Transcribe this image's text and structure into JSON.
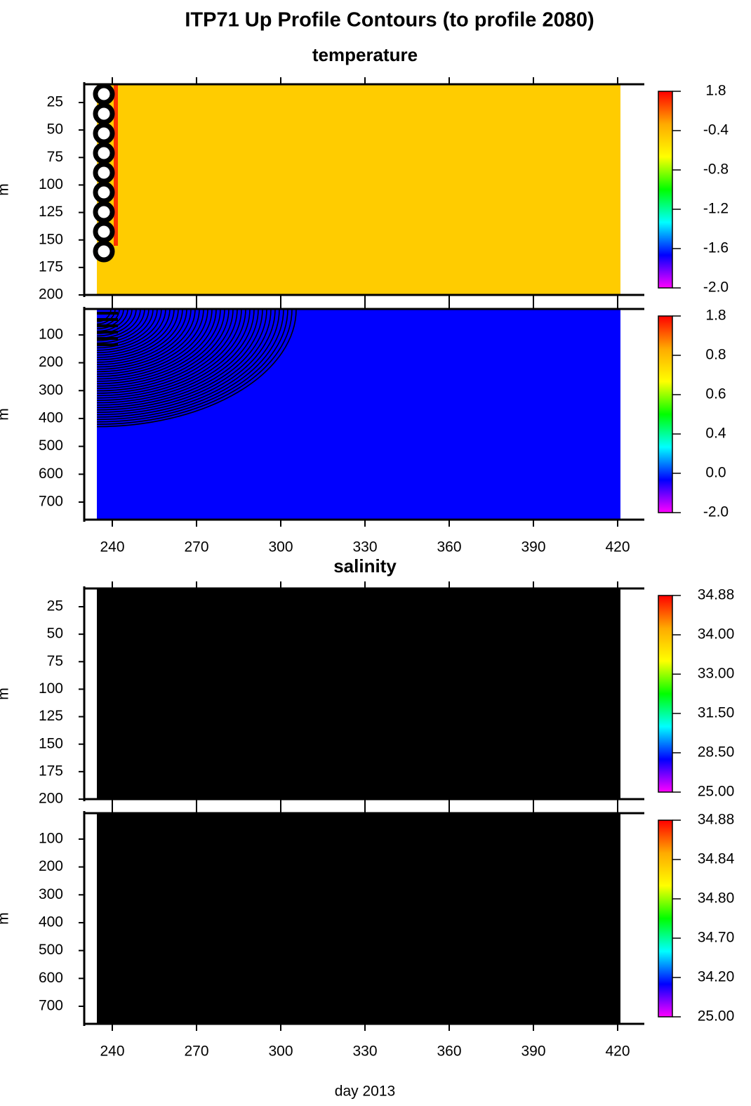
{
  "title": "ITP71 Up Profile Contours (to profile 2080)",
  "chart_data": [
    {
      "type": "contour",
      "subtitle": "temperature",
      "ylabel": "m",
      "xlim": [
        230,
        429.5
      ],
      "xticks": [
        240,
        270,
        300,
        330,
        360,
        390,
        420
      ],
      "xtick_labels_shown": false,
      "ylim": [
        200,
        8.4
      ],
      "yticks": [
        25,
        50,
        75,
        100,
        125,
        150,
        175,
        200
      ],
      "x_range": [
        234.5,
        421
      ],
      "fill_color": "#ffcc00",
      "contours": "left",
      "colorbar": {
        "labels": [
          "1.8",
          "-0.4",
          "-0.8",
          "-1.2",
          "-1.6",
          "-2.0"
        ],
        "colors": [
          "#ff0000",
          "#ffaa00",
          "#ffff00",
          "#00ff00",
          "#00ffff",
          "#0000ff",
          "#ff00ff"
        ]
      }
    },
    {
      "type": "contour",
      "ylabel": "m",
      "xlim": [
        230,
        429.5
      ],
      "xticks": [
        240,
        270,
        300,
        330,
        360,
        390,
        420
      ],
      "xtick_labels_shown": true,
      "ylim": [
        763,
        7
      ],
      "yticks": [
        100,
        200,
        300,
        400,
        500,
        600,
        700
      ],
      "x_range": [
        234.5,
        421
      ],
      "fill_color": "#0000ff",
      "contours": "arcs",
      "colorbar": {
        "labels": [
          "1.8",
          "0.8",
          "0.6",
          "0.4",
          "0.0",
          "-2.0"
        ],
        "colors": [
          "#ff0000",
          "#ffaa00",
          "#ffff00",
          "#00ff00",
          "#00ffff",
          "#0000ff",
          "#ff00ff"
        ]
      }
    },
    {
      "type": "contour",
      "subtitle": "salinity",
      "ylabel": "m",
      "xlim": [
        230,
        429.5
      ],
      "xticks": [
        240,
        270,
        300,
        330,
        360,
        390,
        420
      ],
      "xtick_labels_shown": false,
      "ylim": [
        200,
        8.4
      ],
      "yticks": [
        25,
        50,
        75,
        100,
        125,
        150,
        175,
        200
      ],
      "x_range": [
        234.5,
        421
      ],
      "fill_color": "#000000",
      "contours": "none",
      "colorbar": {
        "labels": [
          "34.88",
          "34.00",
          "33.00",
          "31.50",
          "28.50",
          "25.00"
        ],
        "colors": [
          "#ff0000",
          "#ffaa00",
          "#ffff00",
          "#00ff00",
          "#00ffff",
          "#0000ff",
          "#ff00ff"
        ]
      }
    },
    {
      "type": "contour",
      "ylabel": "m",
      "xlabel": "day 2013",
      "xlim": [
        230,
        429.5
      ],
      "xticks": [
        240,
        270,
        300,
        330,
        360,
        390,
        420
      ],
      "xtick_labels_shown": true,
      "ylim": [
        763,
        7
      ],
      "yticks": [
        100,
        200,
        300,
        400,
        500,
        600,
        700
      ],
      "x_range": [
        234.5,
        421
      ],
      "fill_color": "#000000",
      "contours": "none",
      "colorbar": {
        "labels": [
          "34.88",
          "34.84",
          "34.80",
          "34.70",
          "34.20",
          "25.00"
        ],
        "colors": [
          "#ff0000",
          "#ffaa00",
          "#ffff00",
          "#00ff00",
          "#00ffff",
          "#0000ff",
          "#ff00ff"
        ]
      }
    }
  ]
}
